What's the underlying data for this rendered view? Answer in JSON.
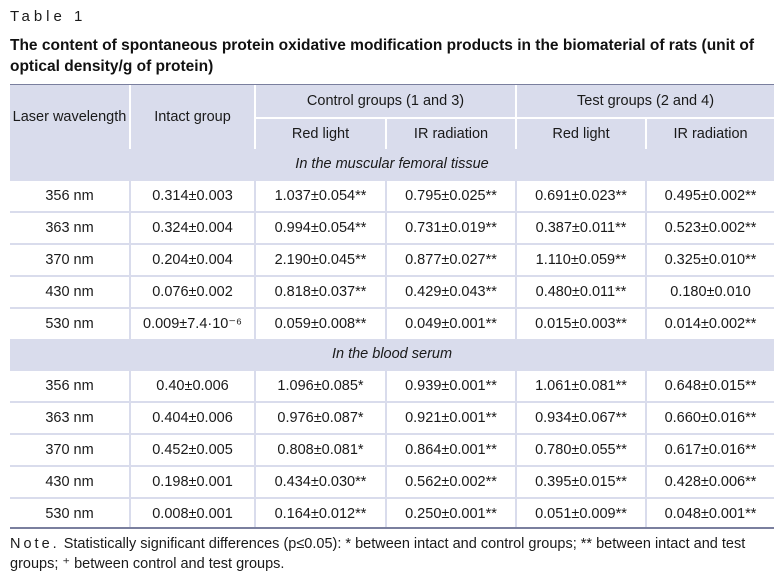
{
  "table_label": "Table 1",
  "caption": "The content of spontaneous protein oxidative modification products in the biomaterial of rats (unit of optical density/g of protein)",
  "header": {
    "laser": "Laser wavelength",
    "intact": "Intact group",
    "control": "Control groups (1 and 3)",
    "test": "Test groups (2 and 4)",
    "red1": "Red light",
    "ir1": "IR radiation",
    "red2": "Red light",
    "ir2": "IR radiation"
  },
  "sections": [
    {
      "title": "In the muscular femoral tissue",
      "rows": [
        [
          "356 nm",
          "0.314±0.003",
          "1.037±0.054**",
          "0.795±0.025**",
          "0.691±0.023**",
          "0.495±0.002**"
        ],
        [
          "363 nm",
          "0.324±0.004",
          "0.994±0.054**",
          "0.731±0.019**",
          "0.387±0.011**",
          "0.523±0.002**"
        ],
        [
          "370 nm",
          "0.204±0.004",
          "2.190±0.045**",
          "0.877±0.027**",
          "1.110±0.059**",
          "0.325±0.010**"
        ],
        [
          "430 nm",
          "0.076±0.002",
          "0.818±0.037**",
          "0.429±0.043**",
          "0.480±0.011**",
          "0.180±0.010"
        ],
        [
          "530 nm",
          "0.009±7.4·10⁻⁶",
          "0.059±0.008**",
          "0.049±0.001**",
          "0.015±0.003**",
          "0.014±0.002**"
        ]
      ]
    },
    {
      "title": "In the blood serum",
      "rows": [
        [
          "356 nm",
          "0.40±0.006",
          "1.096±0.085*",
          "0.939±0.001**",
          "1.061±0.081**",
          "0.648±0.015**"
        ],
        [
          "363 nm",
          "0.404±0.006",
          "0.976±0.087*",
          "0.921±0.001**",
          "0.934±0.067**",
          "0.660±0.016**"
        ],
        [
          "370 nm",
          "0.452±0.005",
          "0.808±0.081*",
          "0.864±0.001**",
          "0.780±0.055**",
          "0.617±0.016**"
        ],
        [
          "430 nm",
          "0.198±0.001",
          "0.434±0.030**",
          "0.562±0.002**",
          "0.395±0.015**",
          "0.428±0.006**"
        ],
        [
          "530 nm",
          "0.008±0.001",
          "0.164±0.012**",
          "0.250±0.001**",
          "0.051±0.009**",
          "0.048±0.001**"
        ]
      ]
    }
  ],
  "note_prefix": "Note.",
  "note_text": " Statistically significant differences (p≤0.05): * between intact and control groups; ** between intact and test groups; ⁺ between control and test groups."
}
